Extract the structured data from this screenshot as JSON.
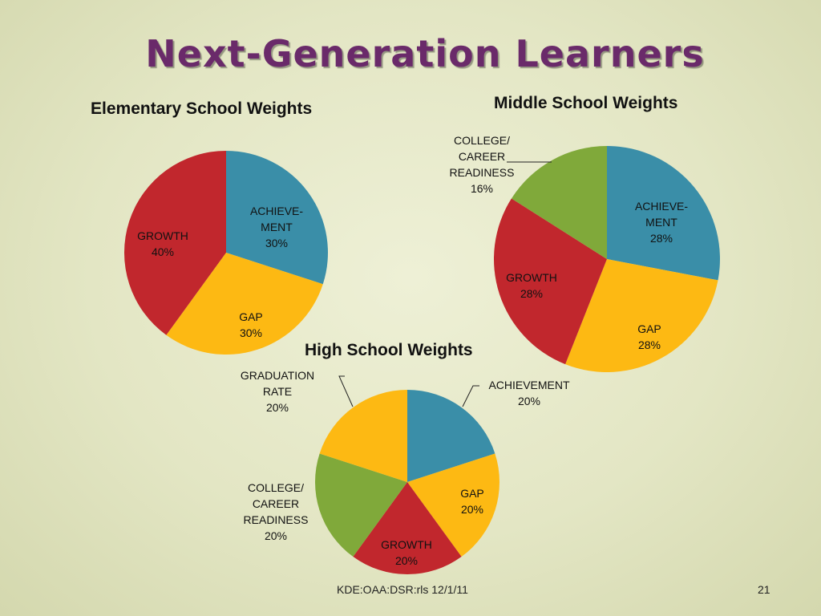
{
  "slide": {
    "title": "Next-Generation Learners",
    "footer": "KDE:OAA:DSR:rls 12/1/11",
    "page_number": "21"
  },
  "colors": {
    "achievement": "#3a8ea8",
    "gap": "#fdb913",
    "growth": "#c1272d",
    "ccr": "#80a93a",
    "graduation": "#fdb913"
  },
  "chart_data": [
    {
      "type": "pie",
      "title": "Elementary School Weights",
      "slices": [
        {
          "key": "achievement",
          "label": [
            "ACHIEVE-",
            "MENT"
          ],
          "pct": "30%",
          "value": 30
        },
        {
          "key": "gap",
          "label": [
            "GAP"
          ],
          "pct": "30%",
          "value": 30
        },
        {
          "key": "growth",
          "label": [
            "GROWTH"
          ],
          "pct": "40%",
          "value": 40
        }
      ]
    },
    {
      "type": "pie",
      "title": "Middle School Weights",
      "slices": [
        {
          "key": "achievement",
          "label": [
            "ACHIEVE-",
            "MENT"
          ],
          "pct": "28%",
          "value": 28
        },
        {
          "key": "gap",
          "label": [
            "GAP"
          ],
          "pct": "28%",
          "value": 28
        },
        {
          "key": "growth",
          "label": [
            "GROWTH"
          ],
          "pct": "28%",
          "value": 28
        },
        {
          "key": "ccr",
          "label": [
            "COLLEGE/",
            "CAREER",
            "READINESS"
          ],
          "pct": "16%",
          "value": 16
        }
      ]
    },
    {
      "type": "pie",
      "title": "High School Weights",
      "slices": [
        {
          "key": "achievement",
          "label": [
            "ACHIEVEMENT"
          ],
          "pct": "20%",
          "value": 20
        },
        {
          "key": "gap",
          "label": [
            "GAP"
          ],
          "pct": "20%",
          "value": 20
        },
        {
          "key": "growth",
          "label": [
            "GROWTH"
          ],
          "pct": "20%",
          "value": 20
        },
        {
          "key": "ccr",
          "label": [
            "COLLEGE/",
            "CAREER",
            "READINESS"
          ],
          "pct": "20%",
          "value": 20
        },
        {
          "key": "graduation",
          "label": [
            "GRADUATION",
            "RATE"
          ],
          "pct": "20%",
          "value": 20
        }
      ]
    }
  ]
}
